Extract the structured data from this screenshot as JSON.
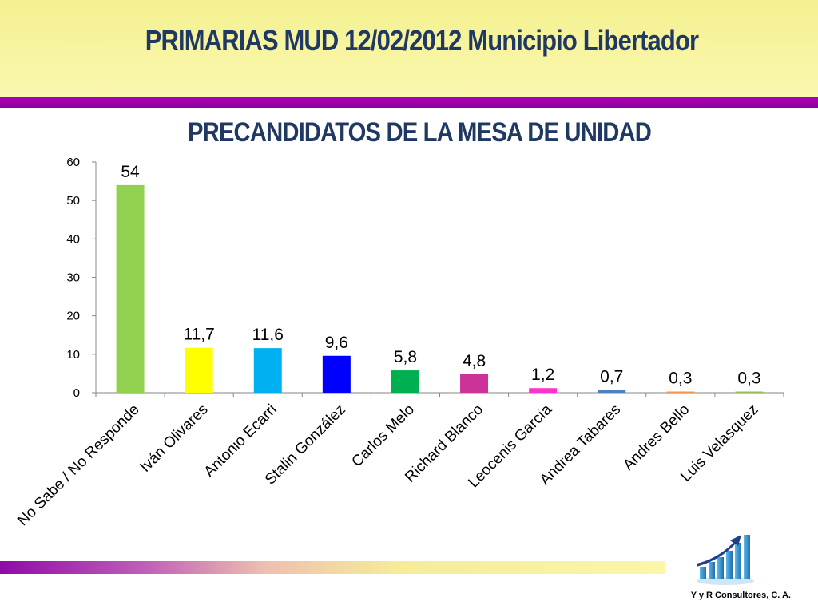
{
  "header": {
    "title": "PRIMARIAS MUD 12/02/2012  Municipio Libertador"
  },
  "footer": {
    "company": "Y y R Consultores, C. A."
  },
  "logo_icon": "rising-bar-chart-logo-icon",
  "colors": {
    "title": "#1f3864",
    "header_band": "#f6f29a",
    "accent_bar": "#a000ad"
  },
  "chart_data": {
    "type": "bar",
    "title": "PRECANDIDATOS DE LA MESA DE UNIDAD",
    "categories": [
      "No Sabe / No Responde",
      "Iván Olivares",
      "Antonio Ecarri",
      "Stalin González",
      "Carlos Melo",
      "Richard Blanco",
      "Leocenis García",
      "Andrea Tabares",
      "Andres Bello",
      "Luis Velasquez"
    ],
    "values": [
      54,
      11.7,
      11.6,
      9.6,
      5.8,
      4.8,
      1.2,
      0.7,
      0.3,
      0.3
    ],
    "value_labels": [
      "54",
      "11,7",
      "11,6",
      "9,6",
      "5,8",
      "4,8",
      "1,2",
      "0,7",
      "0,3",
      "0,3"
    ],
    "bar_colors": [
      "#92d050",
      "#ffff00",
      "#00b0f0",
      "#0000ff",
      "#00b050",
      "#cc3399",
      "#ff33cc",
      "#4f81bd",
      "#f79646",
      "#9bbb59"
    ],
    "yticks": [
      0,
      10,
      20,
      30,
      40,
      50,
      60
    ],
    "ylim": [
      0,
      60
    ],
    "xlabel": "",
    "ylabel": "",
    "grid": false,
    "legend": "none"
  }
}
